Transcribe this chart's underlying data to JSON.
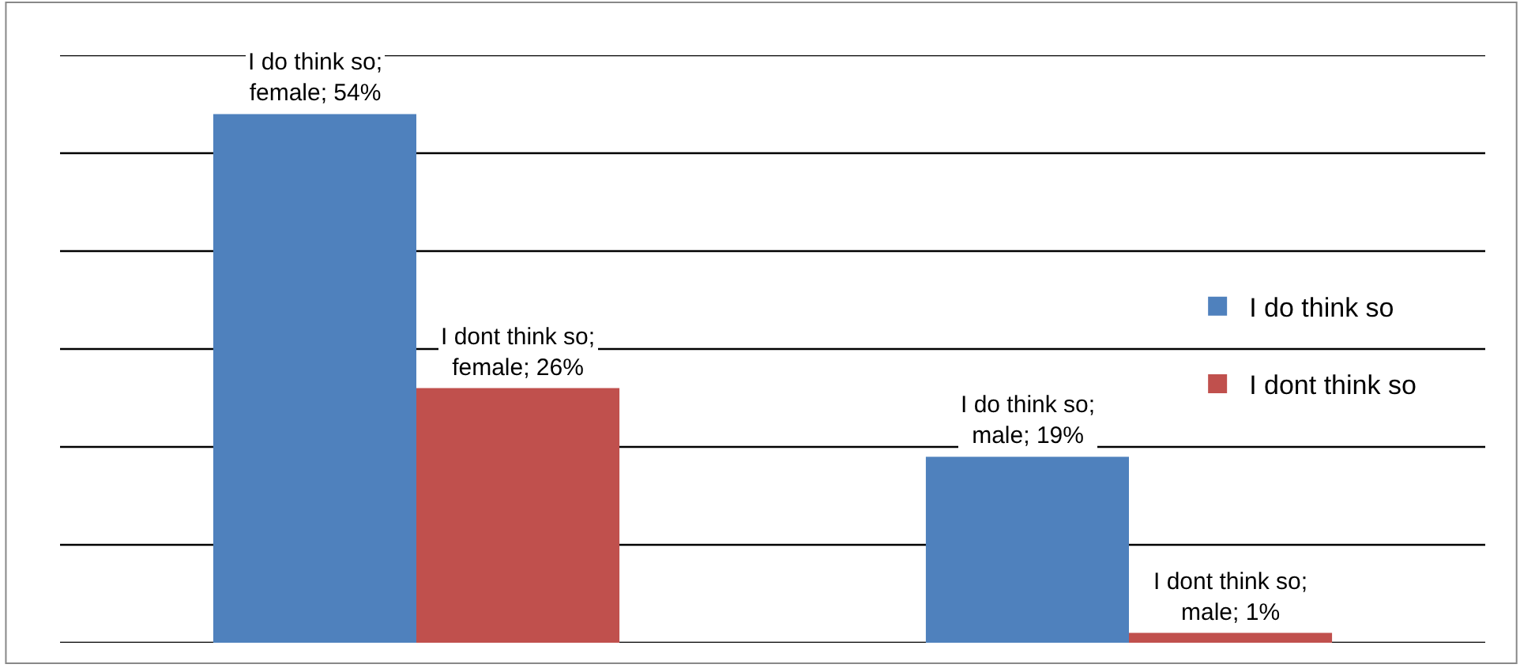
{
  "chart_data": {
    "type": "bar",
    "categories": [
      null,
      null
    ],
    "series": [
      {
        "name": "I do think so",
        "color": "#4f81bd",
        "values": [
          54,
          19
        ],
        "value_labels": [
          "I do think so; female; 54%",
          "I do think so; male; 19%"
        ]
      },
      {
        "name": "I dont think so",
        "color": "#c0504d",
        "values": [
          26,
          1
        ],
        "value_labels": [
          "I dont think so; female; 26%",
          "I dont think so; male; 1%"
        ]
      }
    ],
    "ylim": [
      0,
      60
    ],
    "yticks": [
      {
        "value": 0,
        "label": null
      },
      {
        "value": 10,
        "label": null
      },
      {
        "value": 20,
        "label": null
      },
      {
        "value": 30,
        "label": null
      },
      {
        "value": 40,
        "label": null
      },
      {
        "value": 50,
        "label": null
      },
      {
        "value": 60,
        "label": null
      }
    ],
    "grid": "y",
    "legend": "right"
  }
}
